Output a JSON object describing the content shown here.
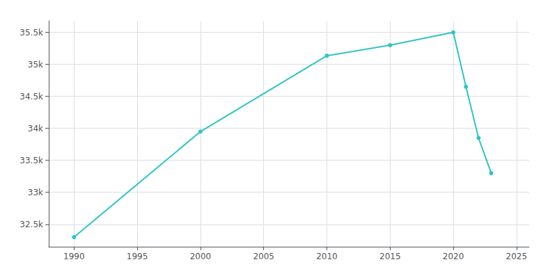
{
  "chart_data": {
    "type": "line",
    "x": [
      1990,
      2000,
      2010,
      2015,
      2020,
      2021,
      2022,
      2023
    ],
    "values": [
      32300,
      33950,
      35135,
      35300,
      35500,
      34650,
      33850,
      33300
    ],
    "color": "#2EC4C4",
    "marker": "circle",
    "xlim": [
      1988,
      2026
    ],
    "xticks": [
      1990,
      1995,
      2000,
      2005,
      2010,
      2015,
      2020,
      2025
    ],
    "ylim": [
      32150,
      35680
    ],
    "yticks": [
      {
        "value": 32500,
        "label": "32.5k"
      },
      {
        "value": 33000,
        "label": "33k"
      },
      {
        "value": 33500,
        "label": "33.5k"
      },
      {
        "value": 34000,
        "label": "34k"
      },
      {
        "value": 34500,
        "label": "34.5k"
      },
      {
        "value": 35000,
        "label": "35k"
      },
      {
        "value": 35500,
        "label": "35.5k"
      }
    ],
    "grid": true
  }
}
